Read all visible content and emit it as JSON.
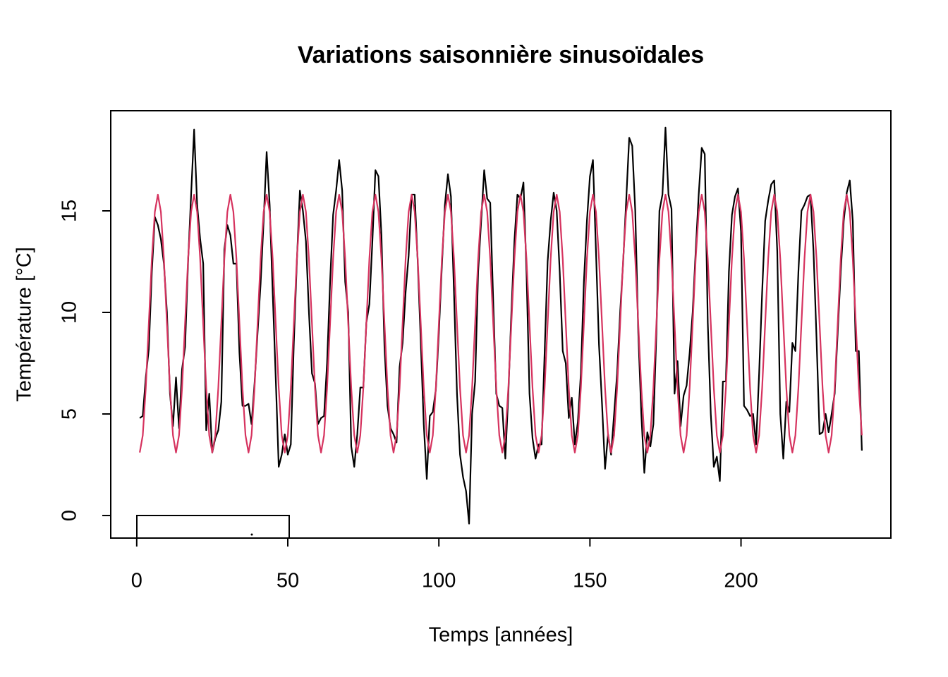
{
  "chart_data": {
    "type": "line",
    "title": "Variations saisonnière sinusoïdales",
    "x_label": "Temps [années]",
    "y_label": "Température [°C]",
    "xlim": [
      -8.6,
      249.6
    ],
    "ylim": [
      -1.11,
      19.93
    ],
    "xticks": [
      0,
      50,
      100,
      150,
      200
    ],
    "yticks": [
      0,
      5,
      10,
      15
    ],
    "x": [
      1,
      2,
      3,
      4,
      5,
      6,
      7,
      8,
      9,
      10,
      11,
      12,
      13,
      14,
      15,
      16,
      17,
      18,
      19,
      20,
      21,
      22,
      23,
      24,
      25,
      26,
      27,
      28,
      29,
      30,
      31,
      32,
      33,
      34,
      35,
      36,
      37,
      38,
      39,
      40,
      41,
      42,
      43,
      44,
      45,
      46,
      47,
      48,
      49,
      50,
      51,
      52,
      53,
      54,
      55,
      56,
      57,
      58,
      59,
      60,
      61,
      62,
      63,
      64,
      65,
      66,
      67,
      68,
      69,
      70,
      71,
      72,
      73,
      74,
      75,
      76,
      77,
      78,
      79,
      80,
      81,
      82,
      83,
      84,
      85,
      86,
      87,
      88,
      89,
      90,
      91,
      92,
      93,
      94,
      95,
      96,
      97,
      98,
      99,
      100,
      101,
      102,
      103,
      104,
      105,
      106,
      107,
      108,
      109,
      110,
      111,
      112,
      113,
      114,
      115,
      116,
      117,
      118,
      119,
      120,
      121,
      122,
      123,
      124,
      125,
      126,
      127,
      128,
      129,
      130,
      131,
      132,
      133,
      134,
      135,
      136,
      137,
      138,
      139,
      140,
      141,
      142,
      143,
      144,
      145,
      146,
      147,
      148,
      149,
      150,
      151,
      152,
      153,
      154,
      155,
      156,
      157,
      158,
      159,
      160,
      161,
      162,
      163,
      164,
      165,
      166,
      167,
      168,
      169,
      170,
      171,
      172,
      173,
      174,
      175,
      176,
      177,
      178,
      179,
      180,
      181,
      182,
      183,
      184,
      185,
      186,
      187,
      188,
      189,
      190,
      191,
      192,
      193,
      194,
      195,
      196,
      197,
      198,
      199,
      200,
      201,
      202,
      203,
      204,
      205,
      206,
      207,
      208,
      209,
      210,
      211,
      212,
      213,
      214,
      215,
      216,
      217,
      218,
      219,
      220,
      221,
      222,
      223,
      224,
      225,
      226,
      227,
      228,
      229,
      230,
      231,
      232,
      233,
      234,
      235,
      236,
      237,
      238,
      239,
      240
    ],
    "series": [
      {
        "color": "#000000",
        "values": [
          4.8,
          4.9,
          6.8,
          8.2,
          12.0,
          14.7,
          14.3,
          13.6,
          12.4,
          10.0,
          6.0,
          4.4,
          6.8,
          4.3,
          7.2,
          8.3,
          12.5,
          15.8,
          19.0,
          15.3,
          13.6,
          12.4,
          4.2,
          6.0,
          3.1,
          3.8,
          4.2,
          5.6,
          13.1,
          14.3,
          13.8,
          12.4,
          12.4,
          8.0,
          5.4,
          5.4,
          5.5,
          4.5,
          6.5,
          9.0,
          11.4,
          14.5,
          17.9,
          15.3,
          11.0,
          6.8,
          2.4,
          3.0,
          4.0,
          3.0,
          3.5,
          8.5,
          12.5,
          16.0,
          15.0,
          13.5,
          10.0,
          7.0,
          6.5,
          4.5,
          4.8,
          4.9,
          7.5,
          11.5,
          14.8,
          16.0,
          17.5,
          16.0,
          11.5,
          10.0,
          3.4,
          2.4,
          4.0,
          6.3,
          6.3,
          9.5,
          10.4,
          13.5,
          17.0,
          16.7,
          13.8,
          8.3,
          5.4,
          4.3,
          4.0,
          3.6,
          7.3,
          8.5,
          11.0,
          12.8,
          15.8,
          15.8,
          12.5,
          8.6,
          4.5,
          1.8,
          4.9,
          5.1,
          6.2,
          9.0,
          12.3,
          15.3,
          16.8,
          15.7,
          11.0,
          6.0,
          3.0,
          1.9,
          1.2,
          -0.4,
          5.0,
          6.6,
          12.0,
          14.5,
          17.0,
          15.6,
          15.4,
          10.5,
          6.0,
          5.4,
          5.3,
          2.8,
          6.0,
          10.0,
          13.5,
          15.8,
          15.6,
          16.4,
          12.0,
          6.0,
          3.8,
          2.8,
          3.5,
          3.5,
          8.0,
          12.5,
          14.5,
          15.9,
          15.0,
          12.0,
          8.1,
          7.5,
          4.8,
          5.8,
          3.5,
          4.6,
          7.0,
          11.5,
          14.5,
          16.7,
          17.5,
          13.0,
          8.4,
          5.5,
          2.3,
          4.0,
          3.0,
          5.0,
          7.0,
          10.0,
          12.5,
          15.5,
          18.6,
          18.2,
          15.0,
          9.0,
          5.0,
          2.1,
          4.1,
          3.4,
          4.5,
          9.0,
          15.0,
          15.8,
          19.1,
          15.8,
          15.1,
          6.0,
          7.6,
          4.4,
          5.9,
          6.4,
          8.0,
          10.0,
          13.0,
          15.8,
          18.1,
          17.8,
          9.5,
          5.0,
          2.4,
          2.9,
          1.7,
          6.6,
          6.6,
          12.0,
          14.8,
          15.7,
          16.1,
          14.0,
          5.4,
          5.2,
          4.9,
          5.0,
          3.5,
          7.0,
          11.0,
          14.5,
          15.5,
          16.3,
          16.5,
          13.0,
          5.0,
          2.8,
          5.6,
          5.1,
          8.5,
          8.1,
          12.0,
          15.0,
          15.3,
          15.7,
          15.8,
          13.0,
          8.7,
          4.0,
          4.1,
          5.0,
          4.1,
          5.0,
          6.0,
          9.0,
          12.0,
          14.5,
          15.9,
          16.5,
          14.5,
          8.1,
          8.1,
          3.2
        ]
      },
      {
        "color": "#d6335f",
        "values": [
          3.1,
          3.95,
          6.28,
          9.45,
          12.63,
          14.95,
          15.8,
          14.95,
          12.63,
          9.45,
          6.28,
          3.95,
          3.1,
          3.95,
          6.28,
          9.45,
          12.63,
          14.95,
          15.8,
          14.95,
          12.63,
          9.45,
          6.28,
          3.95,
          3.1,
          3.95,
          6.28,
          9.45,
          12.63,
          14.95,
          15.8,
          14.95,
          12.63,
          9.45,
          6.28,
          3.95,
          3.1,
          3.95,
          6.28,
          9.45,
          12.63,
          14.95,
          15.8,
          14.95,
          12.63,
          9.45,
          6.28,
          3.95,
          3.1,
          3.95,
          6.28,
          9.45,
          12.63,
          14.95,
          15.8,
          14.95,
          12.63,
          9.45,
          6.28,
          3.95,
          3.1,
          3.95,
          6.28,
          9.45,
          12.63,
          14.95,
          15.8,
          14.95,
          12.63,
          9.45,
          6.28,
          3.95,
          3.1,
          3.95,
          6.28,
          9.45,
          12.63,
          14.95,
          15.8,
          14.95,
          12.63,
          9.45,
          6.28,
          3.95,
          3.1,
          3.95,
          6.28,
          9.45,
          12.63,
          14.95,
          15.8,
          14.95,
          12.63,
          9.45,
          6.28,
          3.95,
          3.1,
          3.95,
          6.28,
          9.45,
          12.63,
          14.95,
          15.8,
          14.95,
          12.63,
          9.45,
          6.28,
          3.95,
          3.1,
          3.95,
          6.28,
          9.45,
          12.63,
          14.95,
          15.8,
          14.95,
          12.63,
          9.45,
          6.28,
          3.95,
          3.1,
          3.95,
          6.28,
          9.45,
          12.63,
          14.95,
          15.8,
          14.95,
          12.63,
          9.45,
          6.28,
          3.95,
          3.1,
          3.95,
          6.28,
          9.45,
          12.63,
          14.95,
          15.8,
          14.95,
          12.63,
          9.45,
          6.28,
          3.95,
          3.1,
          3.95,
          6.28,
          9.45,
          12.63,
          14.95,
          15.8,
          14.95,
          12.63,
          9.45,
          6.28,
          3.95,
          3.1,
          3.95,
          6.28,
          9.45,
          12.63,
          14.95,
          15.8,
          14.95,
          12.63,
          9.45,
          6.28,
          3.95,
          3.1,
          3.95,
          6.28,
          9.45,
          12.63,
          14.95,
          15.8,
          14.95,
          12.63,
          9.45,
          6.28,
          3.95,
          3.1,
          3.95,
          6.28,
          9.45,
          12.63,
          14.95,
          15.8,
          14.95,
          12.63,
          9.45,
          6.28,
          3.95,
          3.1,
          3.95,
          6.28,
          9.45,
          12.63,
          14.95,
          15.8,
          14.95,
          12.63,
          9.45,
          6.28,
          3.95,
          3.1,
          3.95,
          6.28,
          9.45,
          12.63,
          14.95,
          15.8,
          14.95,
          12.63,
          9.45,
          6.28,
          3.95,
          3.1,
          3.95,
          6.28,
          9.45,
          12.63,
          14.95,
          15.8,
          14.95,
          12.63,
          9.45,
          6.28,
          3.95,
          3.1,
          3.95,
          6.28,
          9.45,
          12.63,
          14.95,
          15.8,
          14.95,
          12.63,
          9.45,
          6.28,
          3.95
        ]
      }
    ]
  }
}
